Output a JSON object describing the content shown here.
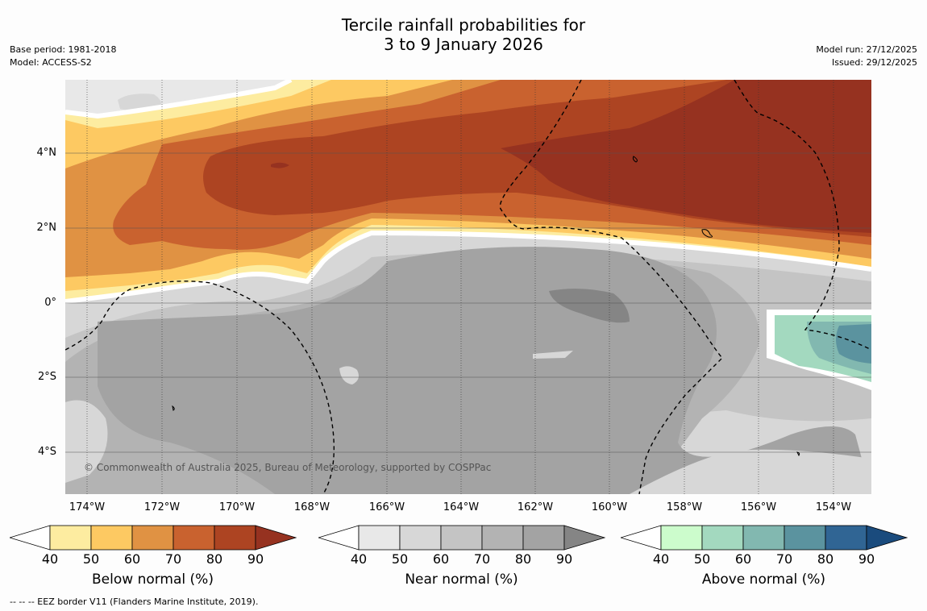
{
  "title": {
    "line1": "Tercile rainfall probabilities for",
    "line2": "3 to 9 January 2026"
  },
  "meta_left": {
    "base_period": "Base period: 1981-2018",
    "model": "Model: ACCESS-S2"
  },
  "meta_right": {
    "model_run": "Model run: 27/12/2025",
    "issued": "Issued: 29/12/2025"
  },
  "map": {
    "lat_labels": [
      "4°N",
      "2°N",
      "0°",
      "2°S",
      "4°S"
    ],
    "lon_labels": [
      "174°W",
      "172°W",
      "170°W",
      "168°W",
      "166°W",
      "164°W",
      "162°W",
      "160°W",
      "158°W",
      "156°W",
      "154°W"
    ],
    "copyright": "© Commonwealth of Australia 2025, Bureau of Meteorology, supported by COSPPac"
  },
  "colorbars": [
    {
      "label": "Below normal (%)",
      "ticks": [
        "40",
        "50",
        "60",
        "70",
        "80",
        "90"
      ],
      "colors": [
        "#fdeca0",
        "#fdc962",
        "#e09243",
        "#c9622f",
        "#ad4422",
        "#963220"
      ]
    },
    {
      "label": "Near normal (%)",
      "ticks": [
        "40",
        "50",
        "60",
        "70",
        "80",
        "90"
      ],
      "colors": [
        "#e8e8e8",
        "#d7d7d7",
        "#c4c4c4",
        "#b3b3b3",
        "#a3a3a3",
        "#858585"
      ]
    },
    {
      "label": "Above normal (%)",
      "ticks": [
        "40",
        "50",
        "60",
        "70",
        "80",
        "90"
      ],
      "colors": [
        "#ccfccc",
        "#a3d9bf",
        "#82b8b0",
        "#5b939f",
        "#306594",
        "#1a4b7d"
      ]
    }
  ],
  "footer": "--  --  -- EEZ border V11 (Flanders Marine Institute, 2019)."
}
